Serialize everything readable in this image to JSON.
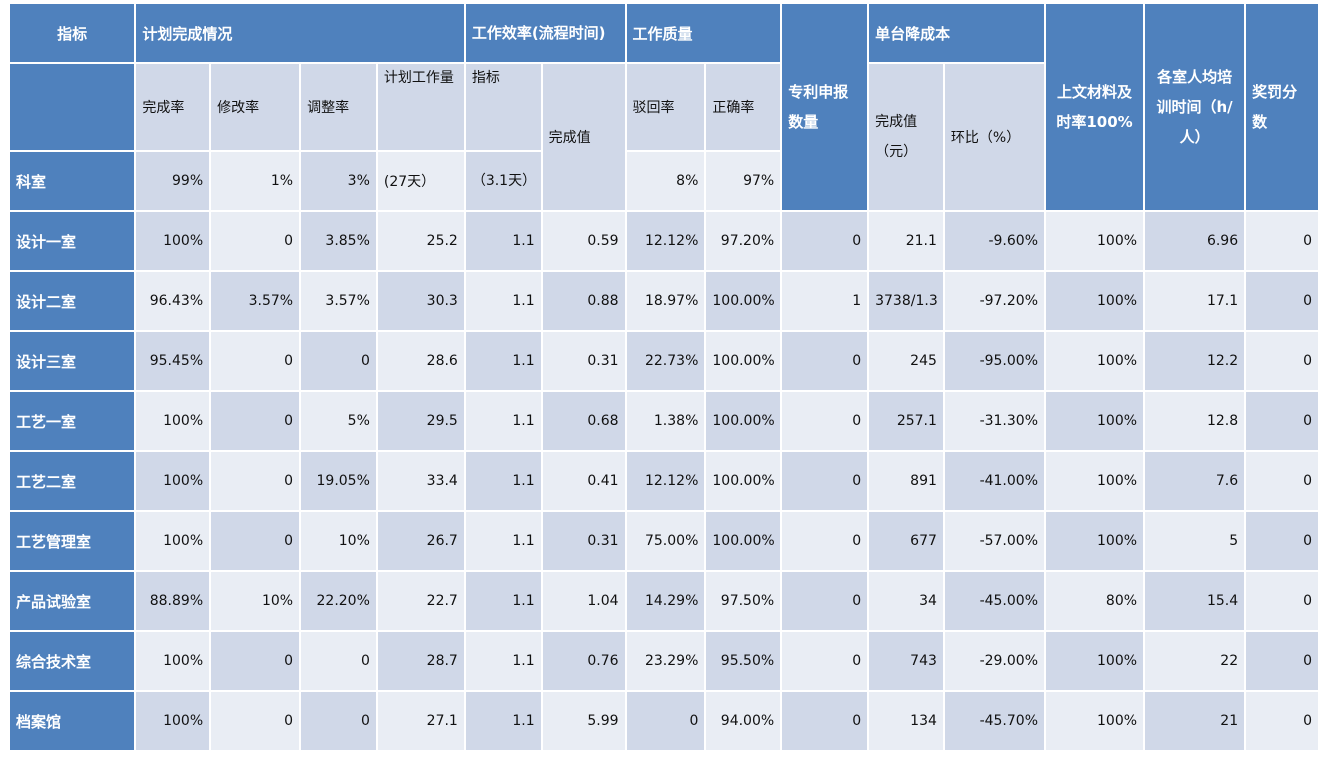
{
  "header": {
    "indicator": "指标",
    "plan_group": "计划完成情况",
    "efficiency_group": "工作效率(流程时间)",
    "quality_group": "工作质量",
    "patent": "专利申报数量",
    "cost_group": "单台降成本",
    "submission": "上文材料及时率100%",
    "training": "各室人均培训时间（h/人）",
    "reward": "奖罚分数"
  },
  "subheader": {
    "completion_rate": "完成率",
    "revision_rate": "修改率",
    "adjust_rate": "调整率",
    "planned_workload": "计划工作量",
    "eff_target": "指标",
    "eff_actual": "完成值",
    "reject_rate": "驳回率",
    "accuracy_rate": "正确率",
    "cost_value": "完成值（元）",
    "cost_mom": "环比（%）"
  },
  "target_row": {
    "label": "科室",
    "completion_rate": "99%",
    "revision_rate": "1%",
    "adjust_rate": "3%",
    "planned_workload": "(27天）",
    "eff_target": "（3.1天）",
    "reject_rate": "8%",
    "accuracy_rate": "97%"
  },
  "rows": [
    {
      "dept": "设计一室",
      "completion": "100%",
      "revision": "0",
      "adjust": "3.85%",
      "workload": "25.2",
      "eff_target": "1.1",
      "eff_actual": "0.59",
      "reject": "12.12%",
      "accuracy": "97.20%",
      "patent": "0",
      "cost_value": "21.1",
      "cost_mom": "-9.60%",
      "submission": "100%",
      "training": "6.96",
      "reward": "0"
    },
    {
      "dept": "设计二室",
      "completion": "96.43%",
      "revision": "3.57%",
      "adjust": "3.57%",
      "workload": "30.3",
      "eff_target": "1.1",
      "eff_actual": "0.88",
      "reject": "18.97%",
      "accuracy": "100.00%",
      "patent": "1",
      "cost_value": "3738/1.3",
      "cost_mom": "-97.20%",
      "submission": "100%",
      "training": "17.1",
      "reward": "0"
    },
    {
      "dept": "设计三室",
      "completion": "95.45%",
      "revision": "0",
      "adjust": "0",
      "workload": "28.6",
      "eff_target": "1.1",
      "eff_actual": "0.31",
      "reject": "22.73%",
      "accuracy": "100.00%",
      "patent": "0",
      "cost_value": "245",
      "cost_mom": "-95.00%",
      "submission": "100%",
      "training": "12.2",
      "reward": "0"
    },
    {
      "dept": "工艺一室",
      "completion": "100%",
      "revision": "0",
      "adjust": "5%",
      "workload": "29.5",
      "eff_target": "1.1",
      "eff_actual": "0.68",
      "reject": "1.38%",
      "accuracy": "100.00%",
      "patent": "0",
      "cost_value": "257.1",
      "cost_mom": "-31.30%",
      "submission": "100%",
      "training": "12.8",
      "reward": "0"
    },
    {
      "dept": "工艺二室",
      "completion": "100%",
      "revision": "0",
      "adjust": "19.05%",
      "workload": "33.4",
      "eff_target": "1.1",
      "eff_actual": "0.41",
      "reject": "12.12%",
      "accuracy": "100.00%",
      "patent": "0",
      "cost_value": "891",
      "cost_mom": "-41.00%",
      "submission": "100%",
      "training": "7.6",
      "reward": "0"
    },
    {
      "dept": "工艺管理室",
      "completion": "100%",
      "revision": "0",
      "adjust": "10%",
      "workload": "26.7",
      "eff_target": "1.1",
      "eff_actual": "0.31",
      "reject": "75.00%",
      "accuracy": "100.00%",
      "patent": "0",
      "cost_value": "677",
      "cost_mom": "-57.00%",
      "submission": "100%",
      "training": "5",
      "reward": "0"
    },
    {
      "dept": "产品试验室",
      "completion": "88.89%",
      "revision": "10%",
      "adjust": "22.20%",
      "workload": "22.7",
      "eff_target": "1.1",
      "eff_actual": "1.04",
      "reject": "14.29%",
      "accuracy": "97.50%",
      "patent": "0",
      "cost_value": "34",
      "cost_mom": "-45.00%",
      "submission": "80%",
      "training": "15.4",
      "reward": "0"
    },
    {
      "dept": "综合技术室",
      "completion": "100%",
      "revision": "0",
      "adjust": "0",
      "workload": "28.7",
      "eff_target": "1.1",
      "eff_actual": "0.76",
      "reject": "23.29%",
      "accuracy": "95.50%",
      "patent": "0",
      "cost_value": "743",
      "cost_mom": "-29.00%",
      "submission": "100%",
      "training": "22",
      "reward": "0"
    },
    {
      "dept": "档案馆",
      "completion": "100%",
      "revision": "0",
      "adjust": "0",
      "workload": "27.1",
      "eff_target": "1.1",
      "eff_actual": "5.99",
      "reject": "0",
      "accuracy": "94.00%",
      "patent": "0",
      "cost_value": "134",
      "cost_mom": "-45.70%",
      "submission": "100%",
      "training": "21",
      "reward": "0"
    }
  ]
}
